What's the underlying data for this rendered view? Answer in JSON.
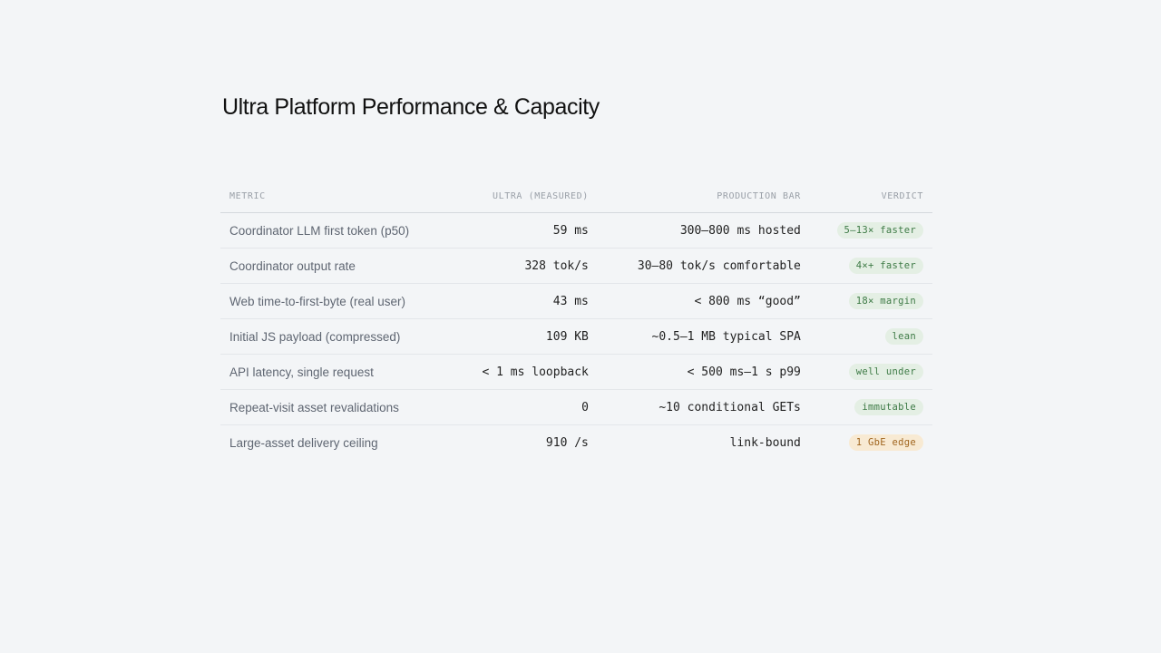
{
  "header": {
    "title": "Ultra Platform Performance & Capacity"
  },
  "table": {
    "columns": [
      "METRIC",
      "ULTRA (MEASURED)",
      "PRODUCTION BAR",
      "VERDICT"
    ],
    "rows": [
      {
        "cells": [
          "Coordinator LLM first token (p50)",
          "59 ms",
          "300–800 ms hosted",
          "5–13× faster"
        ],
        "tone": "good"
      },
      {
        "cells": [
          "Coordinator output rate",
          "328 tok/s",
          "30–80 tok/s comfortable",
          "4×+ faster"
        ],
        "tone": "good"
      },
      {
        "cells": [
          "Web time-to-first-byte (real user)",
          "43 ms",
          "< 800 ms “good”",
          "18× margin"
        ],
        "tone": "good"
      },
      {
        "cells": [
          "Initial JS payload (compressed)",
          "109 KB",
          "~0.5–1 MB typical SPA",
          "lean"
        ],
        "tone": "good"
      },
      {
        "cells": [
          "API latency, single request",
          "< 1 ms loopback",
          "< 500 ms–1 s p99",
          "well under"
        ],
        "tone": "good"
      },
      {
        "cells": [
          "Repeat-visit asset revalidations",
          "0",
          "~10 conditional GETs",
          "immutable"
        ],
        "tone": "good"
      },
      {
        "cells": [
          "Large-asset delivery ceiling",
          "910 /s",
          "link-bound",
          "1 GbE edge"
        ],
        "tone": "warn"
      }
    ]
  }
}
